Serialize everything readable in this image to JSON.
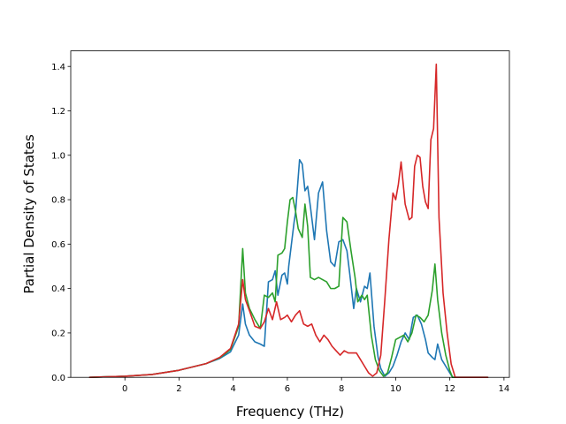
{
  "chart_data": {
    "type": "line",
    "title": "",
    "xlabel": "Frequency (THz)",
    "ylabel": "Partial Density of States",
    "xlim": [
      -2.0,
      14.2
    ],
    "ylim": [
      0.0,
      1.47
    ],
    "xticks": [
      0,
      2,
      4,
      6,
      8,
      10,
      12,
      14
    ],
    "yticks": [
      0.0,
      0.2,
      0.4,
      0.6,
      0.8,
      1.0,
      1.2,
      1.4
    ],
    "xtick_labels": [
      "0",
      "2",
      "4",
      "6",
      "8",
      "10",
      "12",
      "14"
    ],
    "ytick_labels": [
      "0.0",
      "0.2",
      "0.4",
      "0.6",
      "0.8",
      "1.0",
      "1.2",
      "1.4"
    ],
    "grid": false,
    "legend": "none",
    "series": [
      {
        "color": "#1f77b4",
        "x": [
          -1.3,
          0,
          1,
          2,
          3,
          3.5,
          3.9,
          4.2,
          4.35,
          4.45,
          4.6,
          4.8,
          5.0,
          5.15,
          5.3,
          5.45,
          5.55,
          5.65,
          5.8,
          5.9,
          6.0,
          6.05,
          6.15,
          6.25,
          6.3,
          6.45,
          6.55,
          6.65,
          6.75,
          6.85,
          7.0,
          7.15,
          7.3,
          7.45,
          7.6,
          7.75,
          7.9,
          8.05,
          8.2,
          8.3,
          8.45,
          8.55,
          8.7,
          8.85,
          8.95,
          9.05,
          9.2,
          9.35,
          9.45,
          9.6,
          9.75,
          9.9,
          10.05,
          10.2,
          10.35,
          10.5,
          10.65,
          10.8,
          10.95,
          11.1,
          11.2,
          11.35,
          11.45,
          11.55,
          11.7,
          11.85,
          12.0,
          12.1,
          12.2,
          12.4,
          13.4
        ],
        "y": [
          0.0,
          0.005,
          0.013,
          0.032,
          0.062,
          0.085,
          0.115,
          0.19,
          0.33,
          0.24,
          0.19,
          0.16,
          0.15,
          0.14,
          0.43,
          0.44,
          0.48,
          0.37,
          0.46,
          0.47,
          0.42,
          0.5,
          0.6,
          0.7,
          0.74,
          0.98,
          0.96,
          0.84,
          0.86,
          0.77,
          0.62,
          0.83,
          0.88,
          0.66,
          0.52,
          0.5,
          0.61,
          0.62,
          0.57,
          0.47,
          0.31,
          0.4,
          0.34,
          0.41,
          0.4,
          0.47,
          0.23,
          0.09,
          0.04,
          0.005,
          0.02,
          0.05,
          0.1,
          0.16,
          0.2,
          0.17,
          0.27,
          0.28,
          0.24,
          0.17,
          0.11,
          0.09,
          0.08,
          0.15,
          0.08,
          0.05,
          0.02,
          0.0,
          0.0,
          0.0,
          0.0
        ]
      },
      {
        "color": "#2ca02c",
        "x": [
          -1.3,
          0,
          1,
          2,
          3,
          3.5,
          3.9,
          4.2,
          4.35,
          4.45,
          4.6,
          4.8,
          5.0,
          5.15,
          5.3,
          5.45,
          5.55,
          5.65,
          5.8,
          5.9,
          6.0,
          6.1,
          6.2,
          6.3,
          6.4,
          6.55,
          6.65,
          6.75,
          6.85,
          7.0,
          7.15,
          7.3,
          7.45,
          7.6,
          7.75,
          7.9,
          8.05,
          8.2,
          8.35,
          8.5,
          8.6,
          8.75,
          8.85,
          8.95,
          9.1,
          9.25,
          9.4,
          9.55,
          9.7,
          9.85,
          10.0,
          10.15,
          10.3,
          10.45,
          10.6,
          10.75,
          10.9,
          11.05,
          11.2,
          11.35,
          11.45,
          11.55,
          11.7,
          11.85,
          12.0,
          12.1,
          12.2,
          12.4,
          13.4
        ],
        "y": [
          0.0,
          0.005,
          0.013,
          0.032,
          0.062,
          0.088,
          0.125,
          0.23,
          0.58,
          0.38,
          0.31,
          0.26,
          0.22,
          0.37,
          0.36,
          0.38,
          0.34,
          0.55,
          0.56,
          0.58,
          0.7,
          0.8,
          0.81,
          0.75,
          0.67,
          0.63,
          0.78,
          0.68,
          0.45,
          0.44,
          0.45,
          0.44,
          0.43,
          0.4,
          0.4,
          0.41,
          0.72,
          0.7,
          0.57,
          0.45,
          0.34,
          0.37,
          0.35,
          0.37,
          0.19,
          0.08,
          0.03,
          0.005,
          0.02,
          0.09,
          0.17,
          0.18,
          0.19,
          0.16,
          0.2,
          0.28,
          0.27,
          0.25,
          0.28,
          0.39,
          0.51,
          0.35,
          0.2,
          0.1,
          0.03,
          0.0,
          0.0,
          0.0,
          0.0
        ]
      },
      {
        "color": "#d62728",
        "x": [
          -1.3,
          0,
          1,
          2,
          3,
          3.5,
          3.9,
          4.2,
          4.35,
          4.45,
          4.6,
          4.8,
          5.0,
          5.15,
          5.3,
          5.45,
          5.6,
          5.75,
          5.9,
          6.0,
          6.15,
          6.3,
          6.45,
          6.6,
          6.75,
          6.9,
          7.05,
          7.2,
          7.35,
          7.5,
          7.65,
          7.8,
          7.95,
          8.1,
          8.25,
          8.4,
          8.55,
          8.7,
          8.85,
          9.0,
          9.15,
          9.3,
          9.45,
          9.6,
          9.75,
          9.9,
          10.0,
          10.1,
          10.2,
          10.35,
          10.5,
          10.6,
          10.7,
          10.8,
          10.9,
          11.0,
          11.1,
          11.2,
          11.3,
          11.4,
          11.5,
          11.6,
          11.75,
          11.9,
          12.05,
          12.2,
          12.4,
          13.4
        ],
        "y": [
          0.0,
          0.005,
          0.013,
          0.032,
          0.062,
          0.09,
          0.13,
          0.24,
          0.44,
          0.35,
          0.3,
          0.23,
          0.22,
          0.25,
          0.31,
          0.26,
          0.34,
          0.26,
          0.27,
          0.28,
          0.25,
          0.28,
          0.3,
          0.24,
          0.23,
          0.24,
          0.19,
          0.16,
          0.19,
          0.17,
          0.14,
          0.12,
          0.1,
          0.12,
          0.11,
          0.11,
          0.11,
          0.08,
          0.05,
          0.02,
          0.005,
          0.02,
          0.1,
          0.35,
          0.62,
          0.83,
          0.8,
          0.87,
          0.97,
          0.78,
          0.71,
          0.72,
          0.95,
          1.0,
          0.99,
          0.86,
          0.79,
          0.76,
          1.07,
          1.12,
          1.41,
          0.72,
          0.38,
          0.2,
          0.06,
          0.0,
          0.0,
          0.0
        ]
      }
    ]
  }
}
